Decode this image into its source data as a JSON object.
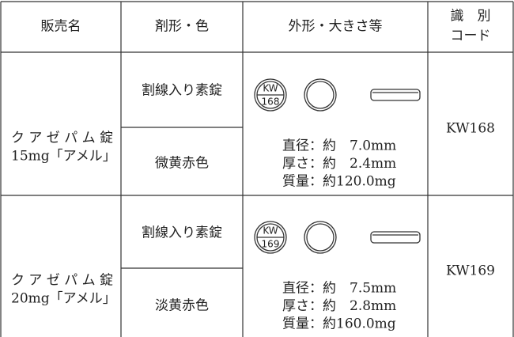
{
  "table": {
    "header": {
      "name": "販売名",
      "form": "剤形・色",
      "shape": "外形・大きさ等",
      "code": [
        "識　別",
        "コード"
      ]
    },
    "rows": [
      {
        "name": [
          "ク ア ゼ パ ム 錠",
          "15mg「アメル」"
        ],
        "form": "割線入り素錠",
        "color": "微黄赤色",
        "imprint": [
          "KW",
          "168"
        ],
        "specs": [
          "直径：約　7.0mm",
          "厚さ：約　2.4mm",
          "質量：約120.0mg"
        ],
        "code": "KW168"
      },
      {
        "name": [
          "ク ア ゼ パ ム 錠",
          "20mg「アメル」"
        ],
        "form": "割線入り素錠",
        "color": "淡黄赤色",
        "imprint": [
          "KW",
          "169"
        ],
        "specs": [
          "直径：約　7.5mm",
          "厚さ：約　2.8mm",
          "質量：約160.0mg"
        ],
        "code": "KW169"
      }
    ]
  }
}
